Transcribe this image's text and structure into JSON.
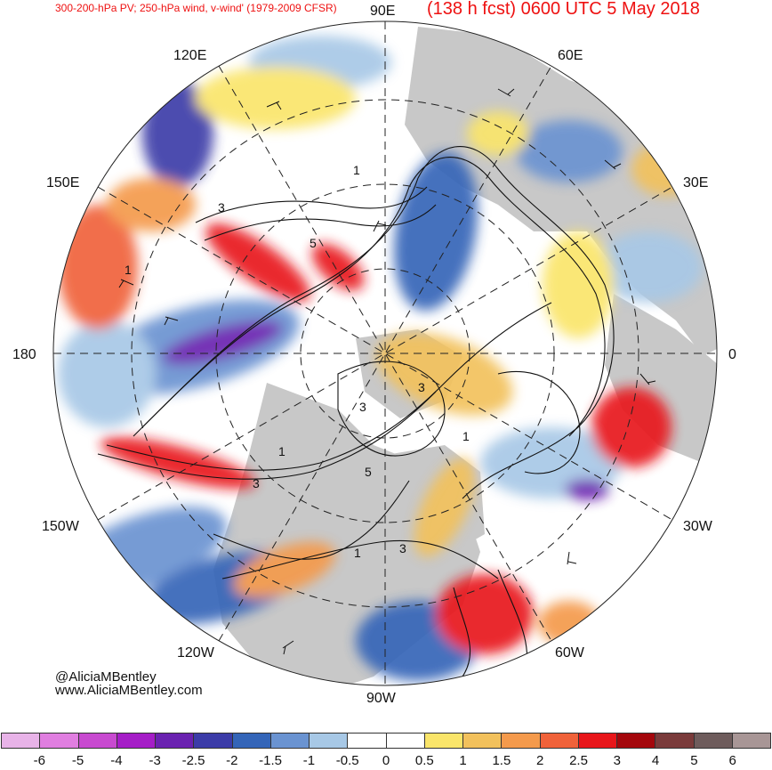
{
  "header": {
    "left_title": "300-200-hPa PV; 250-hPa wind, v-wind' (1979-2009 CFSR)",
    "right_title": "(138 h fcst) 0600 UTC 5 May 2018"
  },
  "credits": {
    "twitter": "@AliciaMBentley",
    "website": "www.AliciaMBentley.com"
  },
  "map": {
    "projection": "north-polar-stereographic",
    "longitude_labels": {
      "e90": "90E",
      "e60": "60E",
      "e30": "30E",
      "zero": "0",
      "w30": "30W",
      "w60": "60W",
      "w90": "90W",
      "w120": "120W",
      "w150": "150W",
      "d180": "180",
      "e150": "150E",
      "e120": "120E"
    },
    "pv_contour_labels": [
      "1",
      "3",
      "5",
      "1",
      "3",
      "5",
      "1",
      "3",
      "1",
      "3",
      "1",
      "3"
    ],
    "colors": {
      "land": "#c8c8c8",
      "ocean": "#ffffff",
      "contour": "#111111",
      "grid": "#333333"
    }
  },
  "colorbar": {
    "labels": [
      "-6",
      "-5",
      "-4",
      "-3",
      "-2.5",
      "-2",
      "-1.5",
      "-1",
      "-0.5",
      "0",
      "0.5",
      "1",
      "1.5",
      "2",
      "2.5",
      "3",
      "4",
      "5",
      "6"
    ],
    "colors": [
      "#e8b3e8",
      "#e07ee0",
      "#c84ad0",
      "#a51dc7",
      "#6a22b0",
      "#3c3ca8",
      "#3465b8",
      "#6a93d1",
      "#a7c8e6",
      "#ffffff",
      "#ffffff",
      "#fae56a",
      "#f2c15c",
      "#f49a4c",
      "#f0623a",
      "#e8161a",
      "#a4070c",
      "#7a3b3b",
      "#6e5c5c",
      "#a89696"
    ]
  }
}
